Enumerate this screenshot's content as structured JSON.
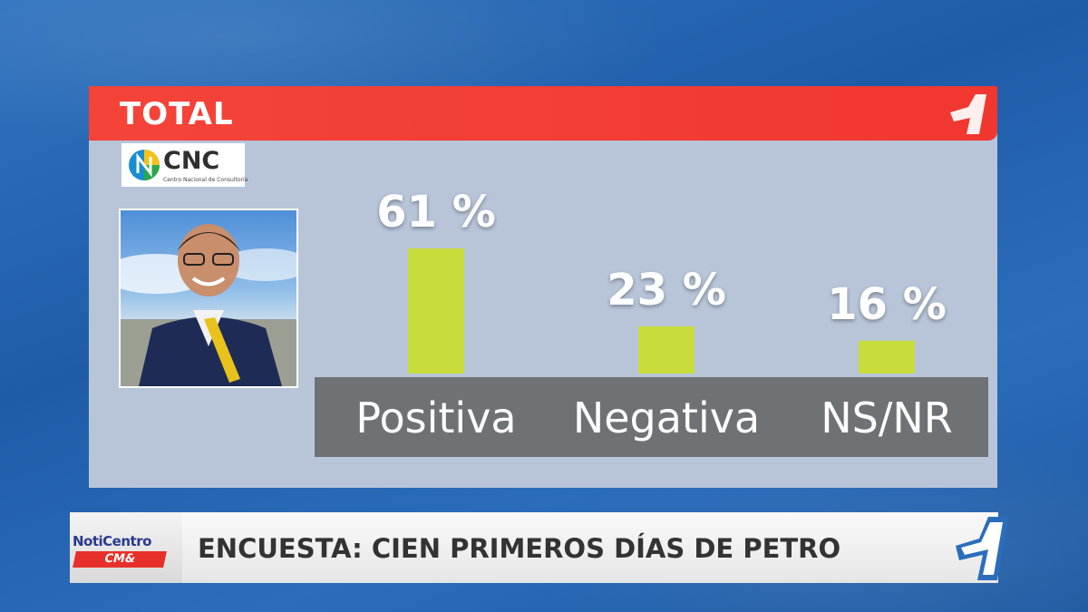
{
  "header": {
    "title": "TOTAL"
  },
  "source_logo": {
    "text": "CNC",
    "subtitle": "Centro Nacional de Consultoría"
  },
  "photo": {
    "subject": "portrait-photo"
  },
  "chart_data": {
    "type": "bar",
    "categories": [
      "Positiva",
      "Negativa",
      "NS/NR"
    ],
    "values": [
      61,
      23,
      16
    ],
    "value_labels": [
      "61 %",
      "23 %",
      "16 %"
    ],
    "ylim": [
      0,
      61
    ],
    "grid": false,
    "bar_color": "#c8dc3c"
  },
  "lower_third": {
    "brand": "NotiCentro",
    "brand_sub": "CM&",
    "headline": "ENCUESTA: CIEN PRIMEROS DÍAS DE PETRO"
  },
  "colors": {
    "accent_red": "#f0372f",
    "panel": "#b8c5d9",
    "category_band": "#6e7275"
  }
}
